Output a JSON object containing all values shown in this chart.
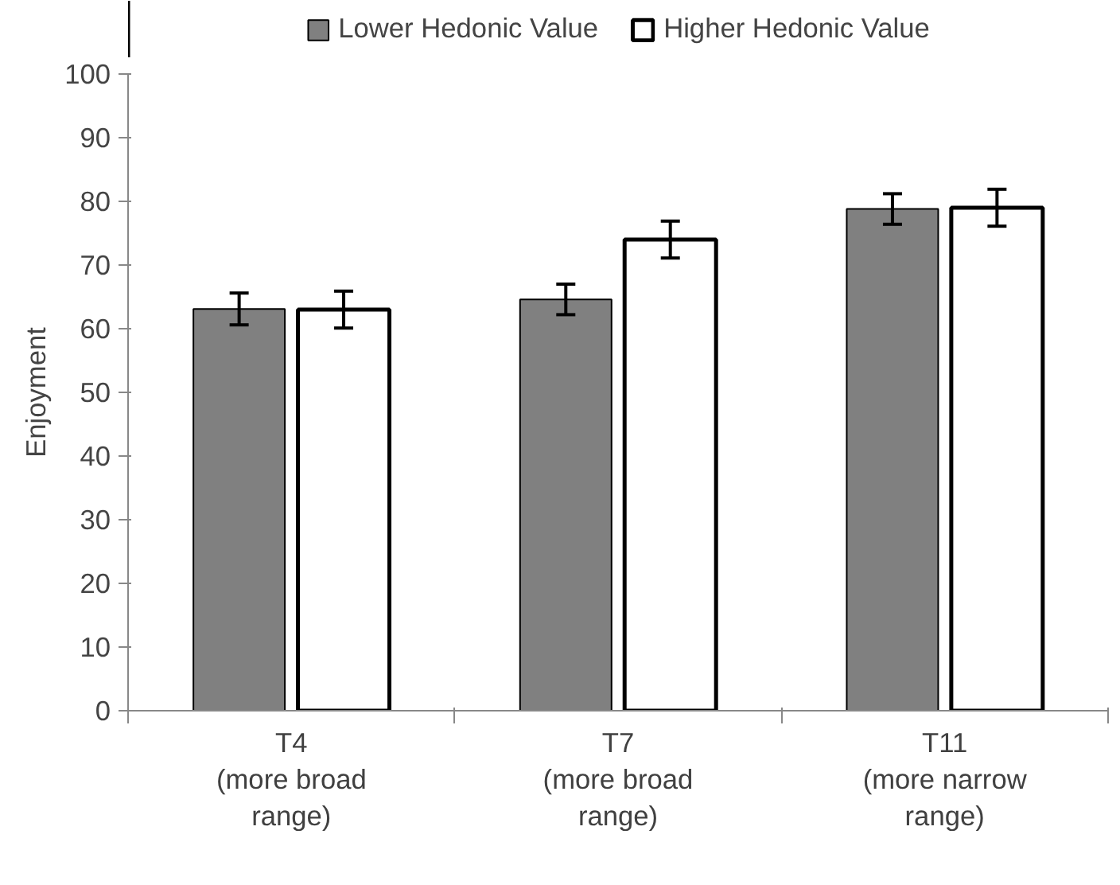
{
  "chart_data": {
    "type": "bar",
    "ylabel": "Enjoyment",
    "categories": [
      "T4\n(more broad\nrange)",
      "T7\n(more broad\nrange)",
      "T11\n(more narrow\nrange)"
    ],
    "series": [
      {
        "name": "Lower Hedonic Value",
        "color": "#808080",
        "values": [
          63.1,
          64.6,
          78.8
        ],
        "errors": [
          2.5,
          2.4,
          2.4
        ]
      },
      {
        "name": "Higher Hedonic Value",
        "color": "#ffffff",
        "values": [
          63.0,
          74.0,
          79.0
        ],
        "errors": [
          2.9,
          2.9,
          2.9
        ]
      }
    ],
    "ylim": [
      0,
      100
    ],
    "yticks": [
      0,
      10,
      20,
      30,
      40,
      50,
      60,
      70,
      80,
      90,
      100
    ],
    "grid": false,
    "legend": "top"
  }
}
